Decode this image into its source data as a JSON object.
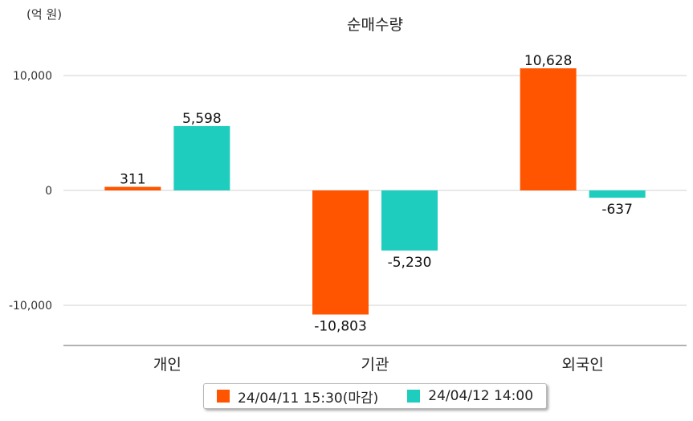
{
  "chart_data": {
    "type": "bar",
    "title": "순매수량",
    "unit_label": "(억 원)",
    "categories": [
      "개인",
      "기관",
      "외국인"
    ],
    "series": [
      {
        "name": "24/04/11 15:30(마감)",
        "color": "#ff5500",
        "values": [
          311,
          -10803,
          10628
        ],
        "labels": [
          "311",
          "-10,803",
          "10,628"
        ]
      },
      {
        "name": "24/04/12 14:00",
        "color": "#1ecdbd",
        "values": [
          5598,
          -5230,
          -637
        ],
        "labels": [
          "5,598",
          "-5,230",
          "-637"
        ]
      }
    ],
    "yticks": [
      10000,
      0,
      -10000
    ],
    "ytick_labels": [
      "10,000",
      "0",
      "-10,000"
    ],
    "ylim": [
      -13500,
      13000
    ],
    "grid": true,
    "legend": "bottom-center"
  }
}
